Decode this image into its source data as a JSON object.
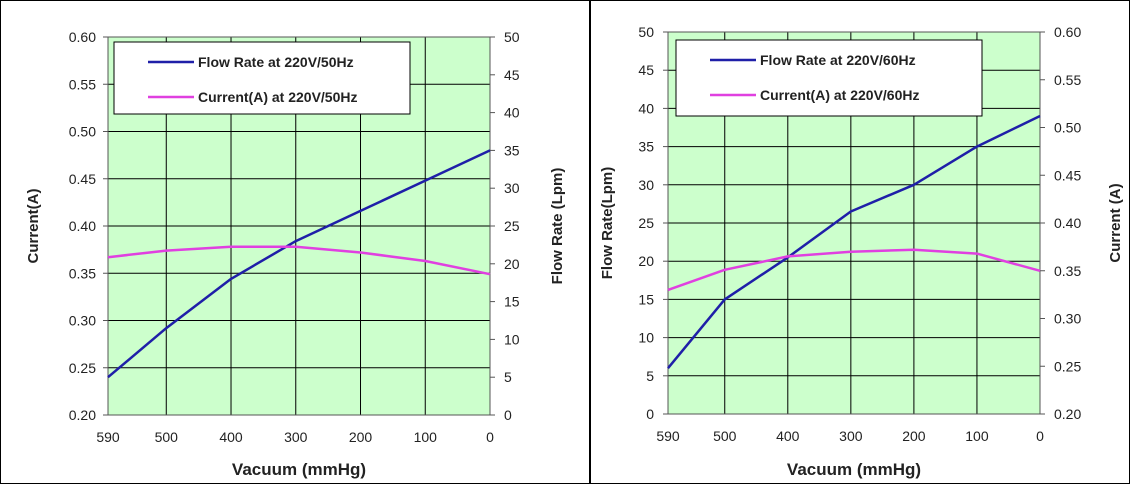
{
  "chart_data": [
    {
      "type": "line",
      "plot_background": "#ccffcc",
      "grid": true,
      "legend": "top-left",
      "xlabel": "Vacuum (mmHg)",
      "x_ticks": [
        "590",
        "500",
        "400",
        "300",
        "200",
        "100",
        "0"
      ],
      "xlim": [
        590,
        0
      ],
      "left_axis": {
        "label": "Current(A)",
        "range": [
          0.2,
          0.6
        ],
        "ticks": [
          "0.20",
          "0.25",
          "0.30",
          "0.35",
          "0.40",
          "0.45",
          "0.50",
          "0.55",
          "0.60"
        ]
      },
      "right_axis": {
        "label": "Flow Rate (Lpm)",
        "range": [
          0,
          50
        ],
        "ticks": [
          "0",
          "5",
          "10",
          "15",
          "20",
          "25",
          "30",
          "35",
          "40",
          "45",
          "50"
        ]
      },
      "series": [
        {
          "name": "Flow Rate at 220V/50Hz",
          "axis": "right",
          "color": "#1f1fa8",
          "x": [
            590,
            500,
            400,
            300,
            200,
            100,
            0
          ],
          "values": [
            5,
            11.5,
            18,
            23,
            27,
            31,
            35
          ]
        },
        {
          "name": "Current(A) at 220V/50Hz",
          "axis": "left",
          "color": "#e040e0",
          "x": [
            590,
            500,
            400,
            300,
            200,
            100,
            0
          ],
          "values": [
            0.367,
            0.374,
            0.378,
            0.378,
            0.372,
            0.363,
            0.349
          ]
        }
      ]
    },
    {
      "type": "line",
      "plot_background": "#ccffcc",
      "grid": true,
      "legend": "top-left",
      "xlabel": "Vacuum (mmHg)",
      "x_ticks": [
        "590",
        "500",
        "400",
        "300",
        "200",
        "100",
        "0"
      ],
      "xlim": [
        590,
        0
      ],
      "left_axis": {
        "label": "Flow Rate(Lpm)",
        "range": [
          0,
          50
        ],
        "ticks": [
          "0",
          "5",
          "10",
          "15",
          "20",
          "25",
          "30",
          "35",
          "40",
          "45",
          "50"
        ]
      },
      "right_axis": {
        "label": "Current (A)",
        "range": [
          0.2,
          0.6
        ],
        "ticks": [
          "0.20",
          "0.25",
          "0.30",
          "0.35",
          "0.40",
          "0.45",
          "0.50",
          "0.55",
          "0.60"
        ]
      },
      "series": [
        {
          "name": "Flow Rate at 220V/60Hz",
          "axis": "left",
          "color": "#1f1fa8",
          "x": [
            590,
            500,
            400,
            300,
            200,
            100,
            0
          ],
          "values": [
            6,
            15,
            20.5,
            26.5,
            30,
            35,
            39
          ]
        },
        {
          "name": "Current(A) at 220V/60Hz",
          "axis": "right",
          "color": "#e040e0",
          "x": [
            590,
            500,
            400,
            300,
            200,
            100,
            0
          ],
          "values": [
            0.33,
            0.351,
            0.365,
            0.37,
            0.372,
            0.368,
            0.35
          ]
        }
      ]
    }
  ]
}
